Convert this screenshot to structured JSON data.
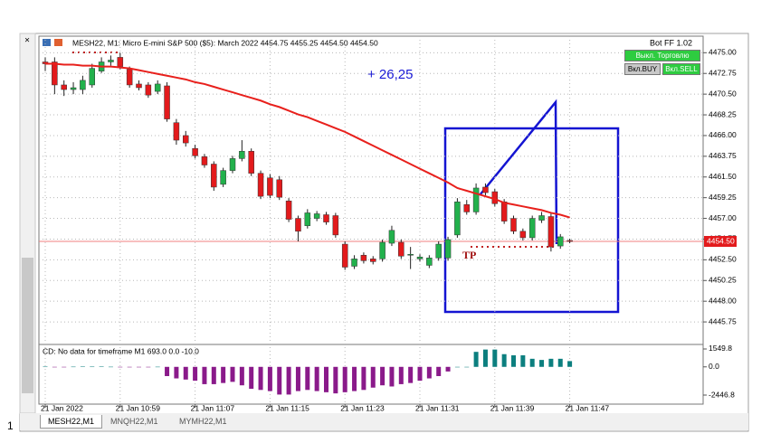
{
  "window": {
    "title": "MESH22, M1:  Micro E-mini S&P 500 ($5): March 2022  4454.75 4455.25 4454.50 4454.50",
    "tab_labels": [
      "MESH22,M1",
      "MNQH22,M1",
      "MYMH22,M1"
    ],
    "side_number": "1"
  },
  "bot_panel": {
    "title": "Bot FF 1.02",
    "buttons": [
      "Выкл. Торговлю",
      "Вкл.BUY",
      "Вкл.SELL"
    ]
  },
  "annotations": {
    "profit": "+ 26,25",
    "tp": "TP"
  },
  "chart_data": [
    {
      "type": "candlestick",
      "categories": [
        "21 Jan 2022",
        null,
        null,
        null,
        null,
        null,
        null,
        null,
        "21 Jan 10:59",
        null,
        null,
        null,
        null,
        null,
        null,
        null,
        "21 Jan 11:07",
        null,
        null,
        null,
        null,
        null,
        null,
        null,
        "21 Jan 11:15",
        null,
        null,
        null,
        null,
        null,
        null,
        null,
        "21 Jan 11:23",
        null,
        null,
        null,
        null,
        null,
        null,
        null,
        "21 Jan 11:31",
        null,
        null,
        null,
        null,
        null,
        null,
        null,
        "21 Jan 11:39",
        null,
        null,
        null,
        null,
        null,
        null,
        null,
        "21 Jan 11:47"
      ],
      "open": [
        4474.0,
        4474.0,
        4471.5,
        4471.0,
        4471.0,
        4471.5,
        4473.0,
        4474.0,
        4474.5,
        4473.2,
        4471.6,
        4471.5,
        4470.8,
        4471.4,
        4467.4,
        4466.0,
        4464.6,
        4463.7,
        4462.9,
        4460.7,
        4462.2,
        4463.5,
        4464.3,
        4461.9,
        4461.4,
        4461.2,
        4458.9,
        4457.0,
        4456.2,
        4457.0,
        4457.4,
        4457.3,
        4454.2,
        4451.8,
        4453.0,
        4452.6,
        4452.6,
        4454.3,
        4454.4,
        4453.0,
        4452.6,
        4451.9,
        4452.7,
        4452.7,
        4455.2,
        4458.5,
        4457.7,
        4460.4,
        4459.9,
        4458.8,
        4457.0,
        4455.6,
        4454.9,
        4456.8,
        4457.2,
        4454.0,
        4454.6
      ],
      "high": [
        4474.5,
        4474.5,
        4472.0,
        4471.8,
        4472.5,
        4473.8,
        4474.5,
        4474.7,
        4475.0,
        4473.5,
        4472.0,
        4471.8,
        4472.0,
        4471.8,
        4467.8,
        4466.5,
        4465.0,
        4464.0,
        4463.2,
        4462.5,
        4463.8,
        4465.5,
        4464.6,
        4462.2,
        4461.8,
        4461.6,
        4459.2,
        4457.3,
        4458.0,
        4457.8,
        4457.7,
        4457.6,
        4454.5,
        4453.0,
        4453.3,
        4452.9,
        4454.7,
        4456.2,
        4454.7,
        4453.9,
        4453.1,
        4453.0,
        4454.5,
        4455.0,
        4459.2,
        4459.0,
        4460.8,
        4460.8,
        4460.2,
        4459.1,
        4457.3,
        4455.9,
        4457.3,
        4457.7,
        4457.6,
        4455.3,
        4454.8
      ],
      "low": [
        4473.0,
        4470.5,
        4470.3,
        4470.5,
        4470.5,
        4471.2,
        4472.8,
        4473.6,
        4473.2,
        4471.2,
        4470.9,
        4470.1,
        4470.5,
        4467.5,
        4465.0,
        4464.8,
        4463.5,
        4462.5,
        4460.0,
        4460.4,
        4461.9,
        4463.2,
        4461.6,
        4459.1,
        4459.2,
        4459.0,
        4456.6,
        4454.5,
        4455.9,
        4456.7,
        4456.3,
        4454.9,
        4451.4,
        4451.5,
        4452.1,
        4452.0,
        4452.3,
        4454.0,
        4452.6,
        4451.5,
        4452.3,
        4451.6,
        4452.4,
        4452.4,
        4454.9,
        4457.4,
        4457.4,
        4459.5,
        4458.3,
        4456.4,
        4455.3,
        4454.6,
        4454.6,
        4456.5,
        4453.4,
        4453.7,
        4454.3
      ],
      "close": [
        4473.8,
        4471.5,
        4471.0,
        4471.2,
        4472.0,
        4473.3,
        4474.0,
        4474.2,
        4473.5,
        4471.5,
        4471.2,
        4470.4,
        4471.6,
        4467.8,
        4465.5,
        4465.2,
        4463.8,
        4462.8,
        4460.4,
        4462.2,
        4463.5,
        4464.3,
        4461.9,
        4459.4,
        4459.5,
        4459.3,
        4456.9,
        4455.6,
        4457.6,
        4457.5,
        4456.6,
        4455.2,
        4451.7,
        4452.6,
        4452.4,
        4452.3,
        4454.4,
        4455.7,
        4452.9,
        4453.1,
        4452.8,
        4452.7,
        4454.2,
        4454.7,
        4458.8,
        4457.7,
        4460.3,
        4459.8,
        4458.6,
        4456.7,
        4455.6,
        4454.9,
        4457.0,
        4457.3,
        4453.9,
        4455.0,
        4454.5
      ],
      "up_color": "#22b14c",
      "down_color": "#e31a1c",
      "overlay": {
        "color": "#e8201c",
        "values": [
          4473.8,
          4473.8,
          4473.7,
          4473.7,
          4473.6,
          4473.6,
          4473.5,
          4473.5,
          4473.4,
          4473.3,
          4473.1,
          4472.9,
          4472.7,
          4472.5,
          4472.3,
          4472.1,
          4471.8,
          4471.6,
          4471.3,
          4471.0,
          4470.7,
          4470.4,
          4470.1,
          4469.8,
          4469.4,
          4469.1,
          4468.7,
          4468.3,
          4468.0,
          4467.6,
          4467.2,
          4466.8,
          4466.4,
          4465.9,
          4465.4,
          4464.9,
          4464.4,
          4463.9,
          4463.4,
          4462.9,
          4462.4,
          4461.9,
          4461.4,
          4460.9,
          4460.3,
          4460.0,
          4459.7,
          4459.4,
          4459.1,
          4458.7,
          4458.5,
          4458.3,
          4458.1,
          4457.9,
          4457.6,
          4457.4,
          4457.1
        ]
      },
      "ylim": [
        4443.4,
        4476.8
      ],
      "yticks": [
        {
          "value": 4475,
          "label": "4475.00"
        },
        {
          "value": 4472.75,
          "label": "4472.75"
        },
        {
          "value": 4470.5,
          "label": "4470.50"
        },
        {
          "value": 4468.25,
          "label": "4468.25"
        },
        {
          "value": 4466,
          "label": "4466.00"
        },
        {
          "value": 4463.75,
          "label": "4463.75"
        },
        {
          "value": 4461.5,
          "label": "4461.50"
        },
        {
          "value": 4459.25,
          "label": "4459.25"
        },
        {
          "value": 4457,
          "label": "4457.00"
        },
        {
          "value": 4454.75,
          "label": "4454.75"
        },
        {
          "value": 4452.5,
          "label": "4452.50"
        },
        {
          "value": 4450.25,
          "label": "4450.25"
        },
        {
          "value": 4448,
          "label": "4448.00"
        },
        {
          "value": 4445.75,
          "label": "4445.75"
        }
      ],
      "grid": true,
      "last_price": {
        "value": 4454.5,
        "label": "4454.50"
      }
    },
    {
      "type": "bar",
      "title": "CD: No data for timeframe M1 693.0 0.0 -10.0",
      "values": [
        20,
        -10,
        -30,
        15,
        25,
        20,
        30,
        10,
        -20,
        -40,
        -30,
        -20,
        10,
        -800,
        -1000,
        -1100,
        -1200,
        -1500,
        -1500,
        -1400,
        -1300,
        -1600,
        -1900,
        -2000,
        -2100,
        -2400,
        -2400,
        -2100,
        -2000,
        -2100,
        -2200,
        -2300,
        -2200,
        -2100,
        -2000,
        -1800,
        -1600,
        -1700,
        -1500,
        -1400,
        -1200,
        -1000,
        -800,
        -400,
        0,
        0,
        1300,
        1500,
        1500,
        1100,
        1000,
        1000,
        700,
        600,
        700,
        700,
        500
      ],
      "pos_color": "#0c7f7f",
      "neg_color": "#8a1a8a",
      "ylim": [
        -3230,
        1863
      ],
      "yticks": [
        1549.8,
        {
          "value": 0,
          "label": "0.0"
        },
        -2446.8
      ]
    }
  ]
}
